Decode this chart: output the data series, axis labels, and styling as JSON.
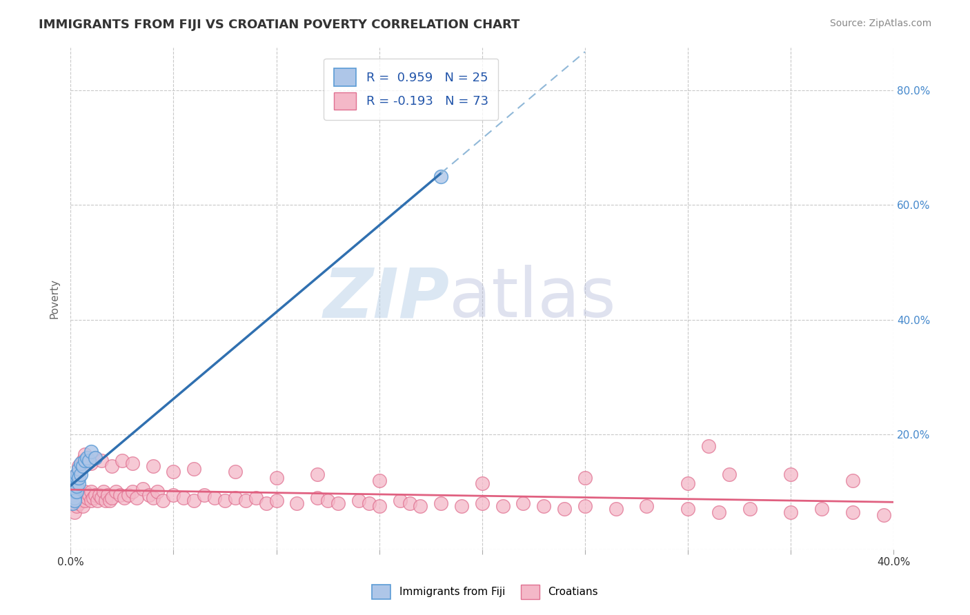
{
  "title": "IMMIGRANTS FROM FIJI VS CROATIAN POVERTY CORRELATION CHART",
  "source": "Source: ZipAtlas.com",
  "ylabel": "Poverty",
  "xlim": [
    0.0,
    0.4
  ],
  "ylim": [
    0.0,
    0.875
  ],
  "xticks": [
    0.0,
    0.05,
    0.1,
    0.15,
    0.2,
    0.25,
    0.3,
    0.35,
    0.4
  ],
  "yticks": [
    0.0,
    0.2,
    0.4,
    0.6,
    0.8
  ],
  "fiji_color": "#aec6e8",
  "fiji_edge_color": "#5b9bd5",
  "croatian_color": "#f4b8c8",
  "croatian_edge_color": "#e07090",
  "fiji_line_color": "#3070b0",
  "croatian_line_color": "#e06080",
  "fiji_dash_color": "#90b8d8",
  "background_color": "#ffffff",
  "grid_color": "#c8c8c8",
  "title_color": "#333333",
  "legend_fiji_label": "R =  0.959   N = 25",
  "legend_croatian_label": "R = -0.193   N = 73",
  "fiji_points_x": [
    0.001,
    0.001,
    0.001,
    0.002,
    0.002,
    0.002,
    0.002,
    0.002,
    0.002,
    0.003,
    0.003,
    0.003,
    0.003,
    0.004,
    0.004,
    0.004,
    0.005,
    0.005,
    0.006,
    0.007,
    0.008,
    0.009,
    0.01,
    0.012,
    0.18
  ],
  "fiji_points_y": [
    0.08,
    0.095,
    0.11,
    0.09,
    0.1,
    0.105,
    0.115,
    0.12,
    0.085,
    0.1,
    0.11,
    0.125,
    0.13,
    0.115,
    0.125,
    0.14,
    0.13,
    0.15,
    0.145,
    0.155,
    0.16,
    0.155,
    0.17,
    0.16,
    0.65
  ],
  "croatian_points_x": [
    0.001,
    0.002,
    0.003,
    0.003,
    0.004,
    0.005,
    0.006,
    0.006,
    0.007,
    0.007,
    0.008,
    0.009,
    0.01,
    0.01,
    0.011,
    0.012,
    0.013,
    0.014,
    0.015,
    0.016,
    0.017,
    0.018,
    0.019,
    0.02,
    0.022,
    0.024,
    0.026,
    0.028,
    0.03,
    0.032,
    0.035,
    0.038,
    0.04,
    0.042,
    0.045,
    0.05,
    0.055,
    0.06,
    0.065,
    0.07,
    0.075,
    0.08,
    0.085,
    0.09,
    0.095,
    0.1,
    0.11,
    0.12,
    0.125,
    0.13,
    0.14,
    0.145,
    0.15,
    0.16,
    0.165,
    0.17,
    0.18,
    0.19,
    0.2,
    0.21,
    0.22,
    0.23,
    0.24,
    0.25,
    0.265,
    0.28,
    0.3,
    0.315,
    0.33,
    0.35,
    0.365,
    0.38,
    0.395
  ],
  "croatian_points_y": [
    0.085,
    0.065,
    0.09,
    0.075,
    0.08,
    0.085,
    0.075,
    0.095,
    0.085,
    0.1,
    0.09,
    0.095,
    0.1,
    0.085,
    0.09,
    0.095,
    0.085,
    0.095,
    0.09,
    0.1,
    0.085,
    0.095,
    0.085,
    0.09,
    0.1,
    0.095,
    0.09,
    0.095,
    0.1,
    0.09,
    0.105,
    0.095,
    0.09,
    0.1,
    0.085,
    0.095,
    0.09,
    0.085,
    0.095,
    0.09,
    0.085,
    0.09,
    0.085,
    0.09,
    0.08,
    0.085,
    0.08,
    0.09,
    0.085,
    0.08,
    0.085,
    0.08,
    0.075,
    0.085,
    0.08,
    0.075,
    0.08,
    0.075,
    0.08,
    0.075,
    0.08,
    0.075,
    0.07,
    0.075,
    0.07,
    0.075,
    0.07,
    0.065,
    0.07,
    0.065,
    0.07,
    0.065,
    0.06
  ],
  "croatian_extra_points_x": [
    0.003,
    0.004,
    0.006,
    0.007,
    0.01,
    0.012,
    0.015,
    0.02,
    0.025,
    0.03,
    0.04,
    0.05,
    0.06,
    0.08,
    0.1,
    0.12,
    0.15,
    0.2,
    0.25,
    0.3,
    0.31,
    0.32,
    0.35,
    0.38
  ],
  "croatian_extra_points_y": [
    0.13,
    0.145,
    0.155,
    0.165,
    0.15,
    0.16,
    0.155,
    0.145,
    0.155,
    0.15,
    0.145,
    0.135,
    0.14,
    0.135,
    0.125,
    0.13,
    0.12,
    0.115,
    0.125,
    0.115,
    0.18,
    0.13,
    0.13,
    0.12
  ]
}
